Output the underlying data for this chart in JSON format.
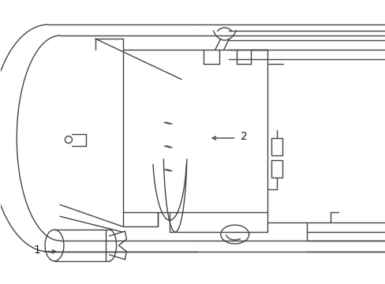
{
  "bg_color": "#ffffff",
  "line_color": "#444444",
  "line_width": 1.0,
  "label1": "1",
  "label2": "2",
  "figsize": [
    4.89,
    3.6
  ],
  "dpi": 100
}
